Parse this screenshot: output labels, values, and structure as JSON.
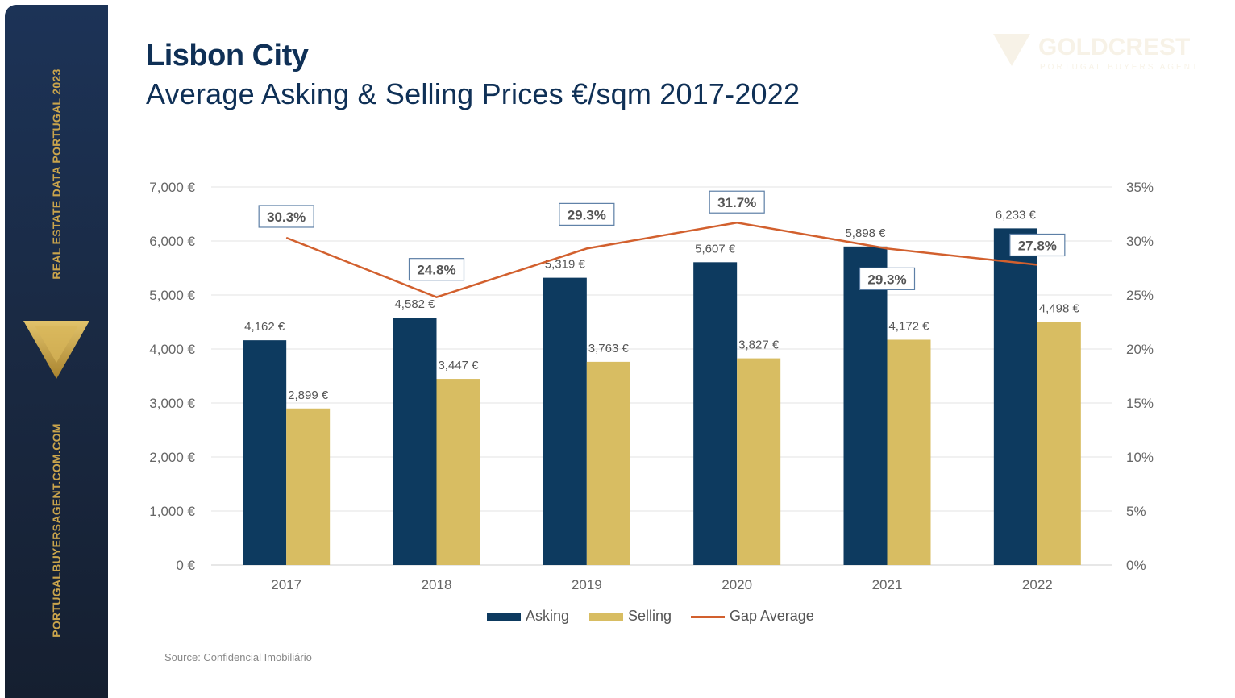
{
  "sidebar": {
    "top_text": "REAL ESTATE DATA PORTUGAL 2023",
    "bottom_text": "PORTUGALBUYERSAGENT.COM.COM"
  },
  "header": {
    "title": "Lisbon City",
    "subtitle": "Average Asking & Selling Prices €/sqm 2017-2022"
  },
  "watermark": {
    "name": "GOLDCREST",
    "tagline": "PORTUGAL BUYERS AGENT"
  },
  "colors": {
    "asking": "#0d3a5f",
    "selling": "#d8bd62",
    "gap": "#d2602e",
    "brand_gold": "#c9a44c"
  },
  "chart_data": {
    "type": "bar",
    "categories": [
      "2017",
      "2018",
      "2019",
      "2020",
      "2021",
      "2022"
    ],
    "series": [
      {
        "name": "Asking",
        "kind": "bar",
        "axis": "left",
        "values": [
          4162,
          4582,
          5319,
          5607,
          5898,
          6233
        ],
        "labels": [
          "4,162 €",
          "4,582 €",
          "5,319 €",
          "5,607 €",
          "5,898 €",
          "6,233 €"
        ]
      },
      {
        "name": "Selling",
        "kind": "bar",
        "axis": "left",
        "values": [
          2899,
          3447,
          3763,
          3827,
          4172,
          4498
        ],
        "labels": [
          "2,899 €",
          "3,447 €",
          "3,763 €",
          "3,827 €",
          "4,172 €",
          "4,498 €"
        ]
      },
      {
        "name": "Gap Average",
        "kind": "line",
        "axis": "right",
        "values": [
          30.3,
          24.8,
          29.3,
          31.7,
          29.3,
          27.8
        ],
        "labels": [
          "30.3%",
          "24.8%",
          "29.3%",
          "31.7%",
          "29.3%",
          "27.8%"
        ]
      }
    ],
    "ylim": [
      0,
      7000
    ],
    "yticks": [
      "0 €",
      "1,000 €",
      "2,000 €",
      "3,000 €",
      "4,000 €",
      "5,000 €",
      "6,000 €",
      "7,000 €"
    ],
    "y2lim": [
      0,
      35
    ],
    "y2ticks": [
      "0%",
      "5%",
      "10%",
      "15%",
      "20%",
      "25%",
      "30%",
      "35%"
    ],
    "grid": true,
    "legend_position": "bottom",
    "source": "Source: Confidencial Imobiliário"
  }
}
